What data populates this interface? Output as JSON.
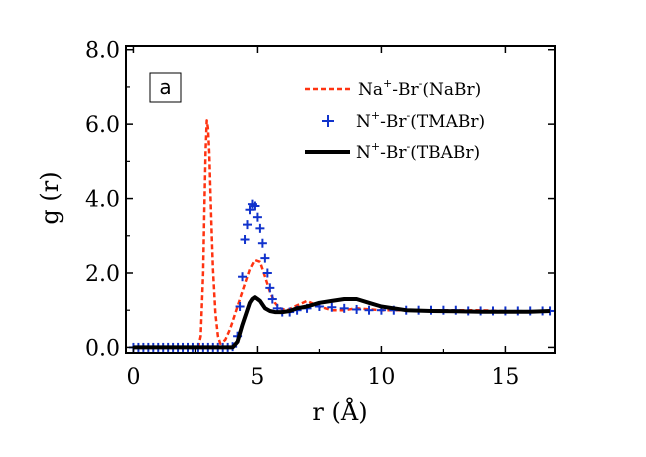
{
  "chart_data": {
    "type": "line",
    "panel_label": "a",
    "xlabel": "r (Å)",
    "ylabel": "g (r)",
    "xlim": [
      -0.3,
      17
    ],
    "ylim": [
      -0.15,
      8.1
    ],
    "x_ticks": [
      {
        "value": 0,
        "label": "0"
      },
      {
        "value": 5,
        "label": "5"
      },
      {
        "value": 10,
        "label": "10"
      },
      {
        "value": 15,
        "label": "15"
      }
    ],
    "y_ticks": [
      {
        "value": 0,
        "label": "0.0"
      },
      {
        "value": 2,
        "label": "2.0"
      },
      {
        "value": 4,
        "label": "4.0"
      },
      {
        "value": 6,
        "label": "6.0"
      },
      {
        "value": 8,
        "label": "8.0"
      }
    ],
    "grid": false,
    "legend_position": "top-right",
    "series": [
      {
        "name": "Na+-Br-(NaBr)",
        "legend": {
          "a": "Na",
          "a_sup": "+",
          "b": "-Br",
          "b_sup": "-",
          "c": "(NaBr)"
        },
        "style": "dashed",
        "color": "#ff3311",
        "x": [
          0,
          2.6,
          2.7,
          2.8,
          2.85,
          2.9,
          2.95,
          3.0,
          3.05,
          3.1,
          3.15,
          3.2,
          3.3,
          3.4,
          3.5,
          3.7,
          3.9,
          4.1,
          4.3,
          4.5,
          4.7,
          4.9,
          5.1,
          5.3,
          5.5,
          5.7,
          5.9,
          6.2,
          6.5,
          7.0,
          7.5,
          8.0,
          8.5,
          9.0,
          10.0,
          11.0,
          12.0,
          13.0,
          14.0,
          15.0,
          16.0,
          16.8
        ],
        "y": [
          0,
          0,
          0.3,
          2.0,
          3.7,
          5.3,
          6.1,
          5.9,
          5.2,
          4.1,
          3.0,
          2.1,
          0.9,
          0.3,
          0.1,
          0.2,
          0.5,
          0.9,
          1.3,
          1.7,
          2.1,
          2.35,
          2.3,
          1.9,
          1.5,
          1.2,
          1.05,
          1.0,
          1.1,
          1.25,
          1.1,
          1.0,
          1.0,
          1.05,
          1.0,
          1.0,
          1.0,
          1.0,
          1.0,
          0.97,
          0.97,
          0.97
        ]
      },
      {
        "name": "N+-Br-(TMABr)",
        "legend": {
          "a": "N",
          "a_sup": "+",
          "b": "-Br",
          "b_sup": "-",
          "c": "(TMABr)"
        },
        "style": "markers-plus",
        "color": "#1133cc",
        "x": [
          0,
          0.2,
          0.4,
          0.6,
          0.8,
          1.0,
          1.2,
          1.4,
          1.6,
          1.8,
          2.0,
          2.2,
          2.4,
          2.6,
          2.8,
          3.0,
          3.2,
          3.4,
          3.6,
          3.8,
          4.0,
          4.2,
          4.3,
          4.4,
          4.5,
          4.6,
          4.7,
          4.8,
          4.9,
          5.0,
          5.1,
          5.2,
          5.3,
          5.4,
          5.5,
          5.6,
          5.8,
          6.0,
          6.3,
          6.6,
          7.0,
          7.5,
          8.0,
          8.5,
          9.0,
          9.5,
          10.0,
          10.5,
          11.0,
          11.5,
          12.0,
          12.5,
          13.0,
          13.5,
          14.0,
          14.5,
          15.0,
          15.5,
          16.0,
          16.5,
          16.8
        ],
        "y": [
          0,
          0,
          0,
          0,
          0,
          0,
          0,
          0,
          0,
          0,
          0,
          0,
          0,
          0,
          0,
          0,
          0,
          0,
          0,
          0,
          0.02,
          0.3,
          1.1,
          1.9,
          2.9,
          3.3,
          3.7,
          3.85,
          3.8,
          3.5,
          3.2,
          2.8,
          2.4,
          2.0,
          1.6,
          1.3,
          1.05,
          0.95,
          0.95,
          1.0,
          1.05,
          1.1,
          1.08,
          1.05,
          1.02,
          1.0,
          1.0,
          1.0,
          1.0,
          1.0,
          1.0,
          1.0,
          1.0,
          0.98,
          0.98,
          0.98,
          0.98,
          0.98,
          0.98,
          0.98,
          0.98
        ]
      },
      {
        "name": "N+-Br-(TBABr)",
        "legend": {
          "a": "N",
          "a_sup": "+",
          "b": "-Br",
          "b_sup": "-",
          "c": "(TBABr)"
        },
        "style": "solid",
        "color": "#000000",
        "x": [
          0,
          4.0,
          4.2,
          4.4,
          4.6,
          4.7,
          4.8,
          4.9,
          5.0,
          5.1,
          5.2,
          5.3,
          5.5,
          5.7,
          6.0,
          6.3,
          6.6,
          7.0,
          7.5,
          8.0,
          8.5,
          9.0,
          9.5,
          10.0,
          10.5,
          11.0,
          12.0,
          13.0,
          14.0,
          15.0,
          16.0,
          16.8
        ],
        "y": [
          0,
          0,
          0.15,
          0.6,
          1.0,
          1.2,
          1.3,
          1.35,
          1.3,
          1.25,
          1.15,
          1.05,
          0.98,
          0.95,
          0.95,
          0.98,
          1.05,
          1.1,
          1.2,
          1.25,
          1.3,
          1.3,
          1.2,
          1.1,
          1.05,
          1.0,
          0.98,
          0.97,
          0.96,
          0.96,
          0.96,
          0.98
        ]
      }
    ]
  }
}
